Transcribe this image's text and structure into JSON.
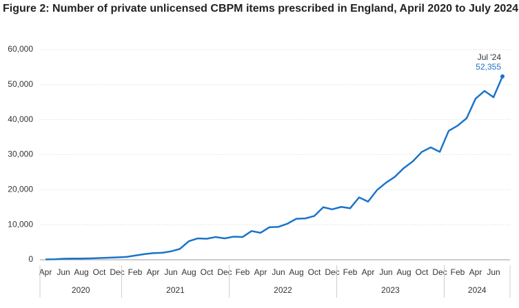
{
  "chart_data": {
    "type": "line",
    "title": "Figure 2: Number of private unlicensed CBPM items prescribed in England, April 2020 to July 2024",
    "categories": [
      "Apr",
      null,
      "Jun",
      null,
      "Aug",
      null,
      "Oct",
      null,
      "Dec",
      null,
      "Feb",
      null,
      "Apr",
      null,
      "Jun",
      null,
      "Aug",
      null,
      "Oct",
      null,
      "Dec",
      null,
      "Feb",
      null,
      "Apr",
      null,
      "Jun",
      null,
      "Aug",
      null,
      "Oct",
      null,
      "Dec",
      null,
      "Feb",
      null,
      "Apr",
      null,
      "Jun",
      null,
      "Aug",
      null,
      "Oct",
      null,
      "Dec",
      null,
      "Feb",
      null,
      "Apr",
      null,
      "Jun",
      null
    ],
    "x_groups": [
      {
        "label": "2020",
        "size": 9
      },
      {
        "label": "2021",
        "size": 12
      },
      {
        "label": "2022",
        "size": 12
      },
      {
        "label": "2023",
        "size": 12
      },
      {
        "label": "2024",
        "size": 7
      }
    ],
    "series": [
      {
        "color": "#1a73c9",
        "values": [
          100,
          150,
          300,
          350,
          350,
          400,
          500,
          600,
          700,
          800,
          1200,
          1600,
          1900,
          2000,
          2400,
          3100,
          5300,
          6100,
          6000,
          6500,
          6100,
          6600,
          6500,
          8200,
          7700,
          9300,
          9400,
          10300,
          11700,
          11800,
          12500,
          15000,
          14400,
          15100,
          14700,
          17800,
          16600,
          19900,
          22000,
          23700,
          26200,
          28100,
          30800,
          32100,
          30800,
          36800,
          38300,
          40400,
          46000,
          48200,
          46400,
          52355
        ]
      }
    ],
    "annotation": {
      "text": "Jul '24",
      "value_label": "52,355"
    },
    "ylim": [
      0,
      60000
    ],
    "yticks": [
      0,
      {
        "value": 10000,
        "label": "10,000"
      },
      {
        "value": 20000,
        "label": "20,000"
      },
      {
        "value": 30000,
        "label": "30,000"
      },
      {
        "value": 40000,
        "label": "40,000"
      },
      {
        "value": 50000,
        "label": "50,000"
      },
      {
        "value": 60000,
        "label": "60,000"
      }
    ],
    "grid": true
  }
}
